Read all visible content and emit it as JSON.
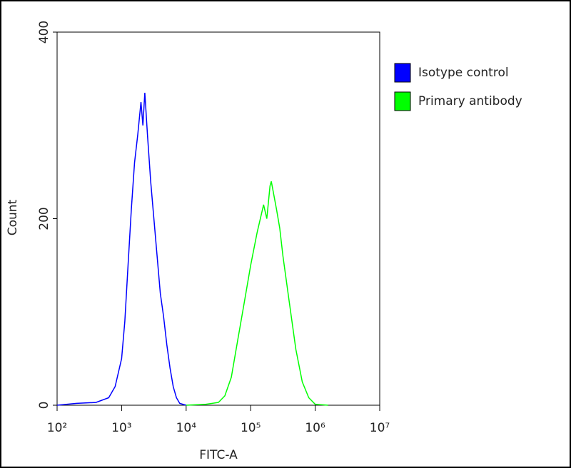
{
  "chart_data": {
    "type": "line",
    "xlabel": "FITC-A",
    "ylabel": "Count",
    "xscale": "log",
    "xlim": [
      100,
      10000000
    ],
    "xticks": [
      {
        "value": 100,
        "label": "10²"
      },
      {
        "value": 1000,
        "label": "10³"
      },
      {
        "value": 10000,
        "label": "10⁴"
      },
      {
        "value": 100000,
        "label": "10⁵"
      },
      {
        "value": 1000000,
        "label": "10⁶"
      },
      {
        "value": 10000000,
        "label": "10⁷"
      }
    ],
    "ylim": [
      0,
      400
    ],
    "yticks": [
      0,
      200,
      400
    ],
    "legend": "outside-right",
    "series": [
      {
        "name": "Isotype control",
        "color": "#0000ff",
        "x": [
          100,
          200,
          400,
          631,
          794,
          1000,
          1122,
          1259,
          1413,
          1585,
          1778,
          1995,
          2138,
          2291,
          2512,
          2818,
          3162,
          3548,
          3981,
          4467,
          5012,
          5623,
          6310,
          7079,
          7943,
          10000
        ],
        "values": [
          0,
          2,
          3,
          8,
          20,
          50,
          90,
          150,
          210,
          260,
          290,
          325,
          300,
          335,
          290,
          240,
          200,
          160,
          120,
          95,
          65,
          40,
          20,
          8,
          2,
          0
        ]
      },
      {
        "name": "Primary antibody",
        "color": "#00ff00",
        "x": [
          10000,
          19953,
          31623,
          39811,
          50119,
          63096,
          79433,
          100000,
          125893,
          158489,
          177828,
          199526,
          208930,
          251189,
          281838,
          316228,
          398107,
          501187,
          630957,
          794328,
          1000000,
          1584893
        ],
        "values": [
          0,
          1,
          3,
          10,
          30,
          70,
          110,
          150,
          185,
          215,
          200,
          235,
          240,
          210,
          190,
          160,
          110,
          60,
          25,
          8,
          1,
          0
        ]
      }
    ]
  }
}
